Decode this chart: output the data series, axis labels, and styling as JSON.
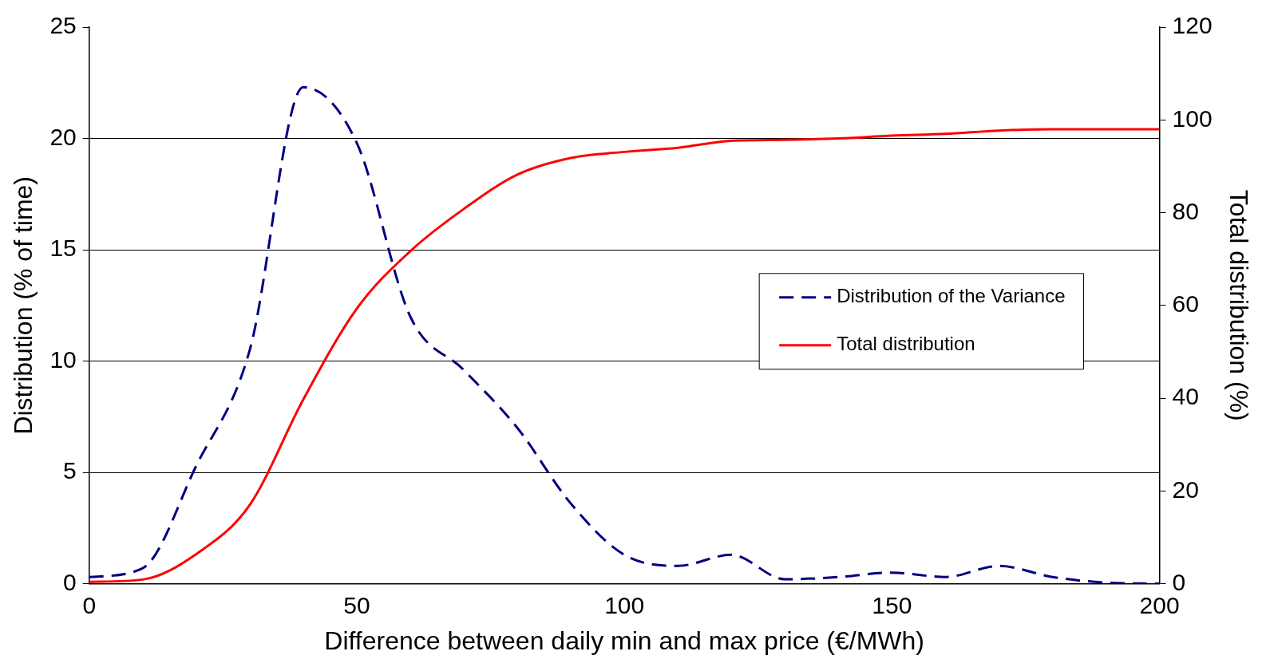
{
  "chart_data": {
    "type": "line",
    "xlabel": "Difference between daily min and max price (€/MWh)",
    "ylabel": "Distribution (% of time)",
    "y2label": "Total distribution (%)",
    "x": [
      0,
      10,
      20,
      30,
      40,
      50,
      60,
      70,
      80,
      90,
      100,
      110,
      120,
      130,
      140,
      150,
      160,
      170,
      180,
      190,
      200
    ],
    "xlim": [
      0,
      200
    ],
    "xticks": [
      0,
      50,
      100,
      150,
      200
    ],
    "ylim": [
      0,
      25
    ],
    "yticks": [
      0,
      5,
      10,
      15,
      20,
      25
    ],
    "y2lim": [
      0,
      120
    ],
    "y2ticks": [
      0,
      20,
      40,
      60,
      80,
      100,
      120
    ],
    "grid": "y",
    "legend": "right",
    "marker": "none",
    "series": [
      {
        "name": "Distribution of the Variance",
        "color": "#000080",
        "line_style": "dashed",
        "values": [
          0.3,
          0.7,
          5.3,
          10.5,
          22.3,
          19.8,
          12.0,
          9.6,
          7.0,
          3.6,
          1.3,
          0.8,
          1.3,
          0.2,
          0.3,
          0.5,
          0.3,
          0.8,
          0.3,
          0.05,
          0.0
        ]
      },
      {
        "name": "Total distribution",
        "color": "#ff0000",
        "line_style": "solid",
        "axis": "y2",
        "values": [
          0.4,
          0.9,
          6.4,
          17,
          39.7,
          59.3,
          71.7,
          80.8,
          88.2,
          91.8,
          93.1,
          94,
          95.5,
          95.7,
          96,
          96.6,
          97,
          97.7,
          98,
          98,
          98
        ]
      }
    ]
  }
}
